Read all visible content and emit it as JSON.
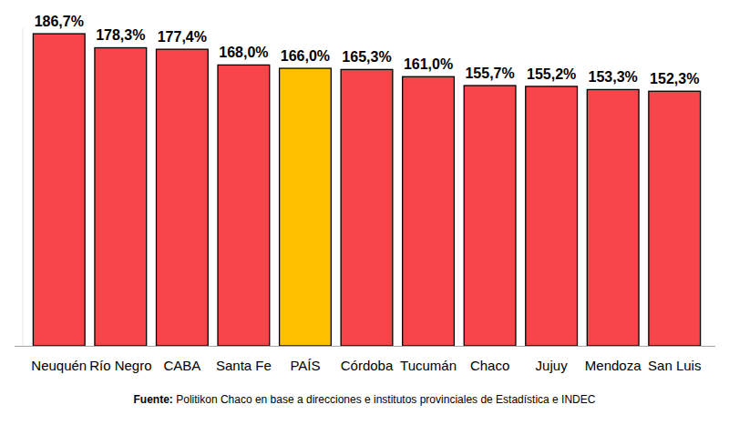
{
  "chart_data": {
    "type": "bar",
    "categories": [
      "Neuquén",
      "Río Negro",
      "CABA",
      "Santa Fe",
      "PAÍS",
      "Córdoba",
      "Tucumán",
      "Chaco",
      "Jujuy",
      "Mendoza",
      "San Luis"
    ],
    "values": [
      186.7,
      178.3,
      177.4,
      168.0,
      166.0,
      165.3,
      161.0,
      155.7,
      155.2,
      153.3,
      152.3
    ],
    "value_labels": [
      "186,7%",
      "178,3%",
      "177,4%",
      "168,0%",
      "166,0%",
      "165,3%",
      "161,0%",
      "155,7%",
      "155,2%",
      "153,3%",
      "152,3%"
    ],
    "colors": [
      "#f94449",
      "#f94449",
      "#f94449",
      "#f94449",
      "#ffc000",
      "#f94449",
      "#f94449",
      "#f94449",
      "#f94449",
      "#f94449",
      "#f94449"
    ],
    "ylim": [
      0,
      190
    ],
    "yticks": [],
    "grid": false,
    "data_labels": true,
    "tick_labels": "x",
    "source": "Fuente: Politikon Chaco en base a direcciones e institutos provinciales de Estadística e INDEC"
  }
}
